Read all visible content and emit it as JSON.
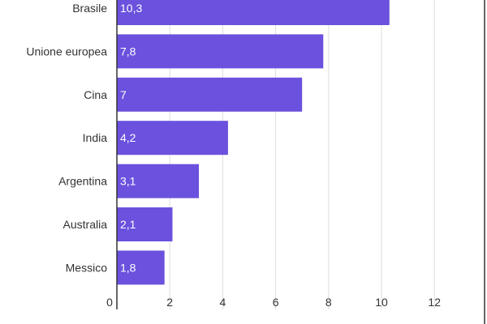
{
  "chart_data": {
    "type": "bar",
    "orientation": "horizontal",
    "categories": [
      "Brasile",
      "Unione europea",
      "Cina",
      "India",
      "Argentina",
      "Australia",
      "Messico"
    ],
    "values": [
      10.3,
      7.8,
      7,
      4.2,
      3.1,
      2.1,
      1.8
    ],
    "value_labels": [
      "10,3",
      "7,8",
      "7",
      "4,2",
      "3,1",
      "2,1",
      "1,8"
    ],
    "xlim": [
      0,
      12
    ],
    "xticks": [
      0,
      2,
      4,
      6,
      8,
      10,
      12
    ],
    "xtick_labels": [
      "0",
      "2",
      "4",
      "6",
      "8",
      "10",
      "12"
    ],
    "grid": true,
    "colors": {
      "bar": "#6b51dd",
      "grid": "#dddddd",
      "axis": "#333333",
      "background": "#ffffff"
    }
  }
}
